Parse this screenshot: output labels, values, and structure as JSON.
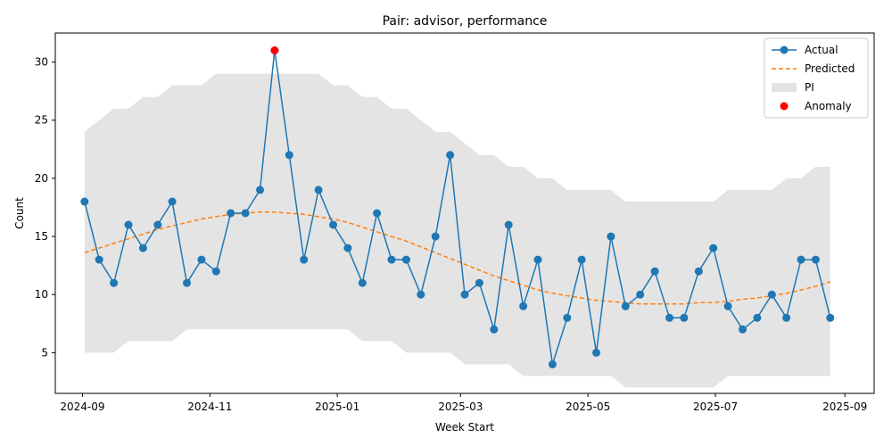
{
  "chart_data": {
    "type": "line",
    "title": "Pair: advisor, performance",
    "xlabel": "Week Start",
    "ylabel": "Count",
    "x_axis": "date",
    "xlim": [
      "2024-08-19",
      "2025-09-15"
    ],
    "ylim": [
      1.5,
      32.5
    ],
    "x_ticks": [
      "2024-09-01",
      "2024-11-01",
      "2025-01-01",
      "2025-03-01",
      "2025-05-01",
      "2025-07-01",
      "2025-09-01"
    ],
    "x_tick_labels": [
      "2024-09",
      "2024-11",
      "2025-01",
      "2025-03",
      "2025-05",
      "2025-07",
      "2025-09"
    ],
    "y_ticks": [
      5,
      10,
      15,
      20,
      25,
      30
    ],
    "y_tick_labels": [
      "5",
      "10",
      "15",
      "20",
      "25",
      "30"
    ],
    "grid": false,
    "legend_position": "top-right",
    "x": [
      "2024-09-02",
      "2024-09-09",
      "2024-09-16",
      "2024-09-23",
      "2024-09-30",
      "2024-10-07",
      "2024-10-14",
      "2024-10-21",
      "2024-10-28",
      "2024-11-04",
      "2024-11-11",
      "2024-11-18",
      "2024-11-25",
      "2024-12-02",
      "2024-12-09",
      "2024-12-16",
      "2024-12-23",
      "2024-12-30",
      "2025-01-06",
      "2025-01-13",
      "2025-01-20",
      "2025-01-27",
      "2025-02-03",
      "2025-02-10",
      "2025-02-17",
      "2025-02-24",
      "2025-03-03",
      "2025-03-10",
      "2025-03-17",
      "2025-03-24",
      "2025-03-31",
      "2025-04-07",
      "2025-04-14",
      "2025-04-21",
      "2025-04-28",
      "2025-05-05",
      "2025-05-12",
      "2025-05-19",
      "2025-05-26",
      "2025-06-02",
      "2025-06-09",
      "2025-06-16",
      "2025-06-23",
      "2025-06-30",
      "2025-07-07",
      "2025-07-14",
      "2025-07-21",
      "2025-07-28",
      "2025-08-04",
      "2025-08-11",
      "2025-08-18",
      "2025-08-25"
    ],
    "series": [
      {
        "name": "Actual",
        "kind": "line-markers",
        "color": "#1f77b4",
        "values": [
          18,
          13,
          11,
          16,
          14,
          16,
          18,
          11,
          13,
          12,
          17,
          17,
          19,
          31,
          22,
          13,
          19,
          16,
          14,
          11,
          17,
          13,
          13,
          10,
          15,
          22,
          10,
          11,
          7,
          16,
          9,
          13,
          4,
          8,
          13,
          5,
          15,
          9,
          10,
          12,
          8,
          8,
          12,
          14,
          9,
          7,
          8,
          10,
          8,
          13,
          13,
          8
        ]
      },
      {
        "name": "Predicted",
        "kind": "dashed-line",
        "color": "#ff7f0e",
        "values": [
          13.6,
          14.0,
          14.4,
          14.8,
          15.2,
          15.6,
          15.9,
          16.2,
          16.5,
          16.7,
          16.9,
          17.0,
          17.1,
          17.1,
          17.0,
          16.9,
          16.7,
          16.5,
          16.2,
          15.8,
          15.4,
          15.0,
          14.6,
          14.1,
          13.6,
          13.1,
          12.6,
          12.1,
          11.6,
          11.2,
          10.8,
          10.4,
          10.1,
          9.9,
          9.7,
          9.5,
          9.4,
          9.3,
          9.2,
          9.2,
          9.2,
          9.2,
          9.3,
          9.3,
          9.4,
          9.6,
          9.7,
          9.9,
          10.1,
          10.4,
          10.7,
          11.1
        ]
      },
      {
        "name": "PI",
        "kind": "band",
        "color": "#d3d3d3",
        "lower": [
          5,
          5,
          5,
          6,
          6,
          6,
          6,
          7,
          7,
          7,
          7,
          7,
          7,
          7,
          7,
          7,
          7,
          7,
          7,
          6,
          6,
          6,
          5,
          5,
          5,
          5,
          4,
          4,
          4,
          4,
          3,
          3,
          3,
          3,
          3,
          3,
          3,
          2,
          2,
          2,
          2,
          2,
          2,
          2,
          3,
          3,
          3,
          3,
          3,
          3,
          3,
          3
        ],
        "upper": [
          24,
          25,
          26,
          26,
          27,
          27,
          28,
          28,
          28,
          29,
          29,
          29,
          29,
          29,
          29,
          29,
          29,
          28,
          28,
          27,
          27,
          26,
          26,
          25,
          24,
          24,
          23,
          22,
          22,
          21,
          21,
          20,
          20,
          19,
          19,
          19,
          19,
          18,
          18,
          18,
          18,
          18,
          18,
          18,
          19,
          19,
          19,
          19,
          20,
          20,
          21,
          21
        ]
      },
      {
        "name": "Anomaly",
        "kind": "points",
        "color": "#ff0000",
        "points": [
          {
            "x": "2024-12-02",
            "y": 31
          }
        ]
      }
    ]
  }
}
